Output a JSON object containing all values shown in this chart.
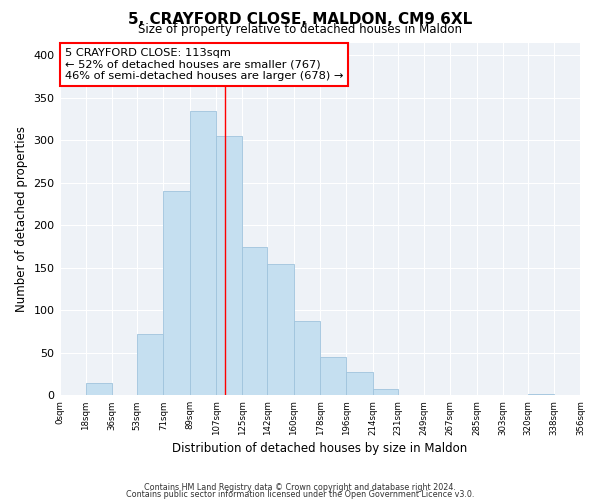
{
  "title": "5, CRAYFORD CLOSE, MALDON, CM9 6XL",
  "subtitle": "Size of property relative to detached houses in Maldon",
  "xlabel": "Distribution of detached houses by size in Maldon",
  "ylabel": "Number of detached properties",
  "bar_color": "#c5dff0",
  "bar_edge_color": "#a0c4dd",
  "background_color": "#eef2f7",
  "tick_labels": [
    "0sqm",
    "18sqm",
    "36sqm",
    "53sqm",
    "71sqm",
    "89sqm",
    "107sqm",
    "125sqm",
    "142sqm",
    "160sqm",
    "178sqm",
    "196sqm",
    "214sqm",
    "231sqm",
    "249sqm",
    "267sqm",
    "285sqm",
    "303sqm",
    "320sqm",
    "338sqm",
    "356sqm"
  ],
  "bar_heights": [
    0,
    15,
    0,
    72,
    240,
    335,
    305,
    175,
    155,
    87,
    45,
    28,
    7,
    0,
    0,
    0,
    0,
    0,
    2,
    0
  ],
  "bin_edges": [
    0,
    18,
    36,
    53,
    71,
    89,
    107,
    125,
    142,
    160,
    178,
    196,
    214,
    231,
    249,
    267,
    285,
    303,
    320,
    338,
    356
  ],
  "property_line_x": 113,
  "ylim": [
    0,
    415
  ],
  "yticks": [
    0,
    50,
    100,
    150,
    200,
    250,
    300,
    350,
    400
  ],
  "annotation_line1": "5 CRAYFORD CLOSE: 113sqm",
  "annotation_line2": "← 52% of detached houses are smaller (767)",
  "annotation_line3": "46% of semi-detached houses are larger (678) →",
  "footer_line1": "Contains HM Land Registry data © Crown copyright and database right 2024.",
  "footer_line2": "Contains public sector information licensed under the Open Government Licence v3.0."
}
